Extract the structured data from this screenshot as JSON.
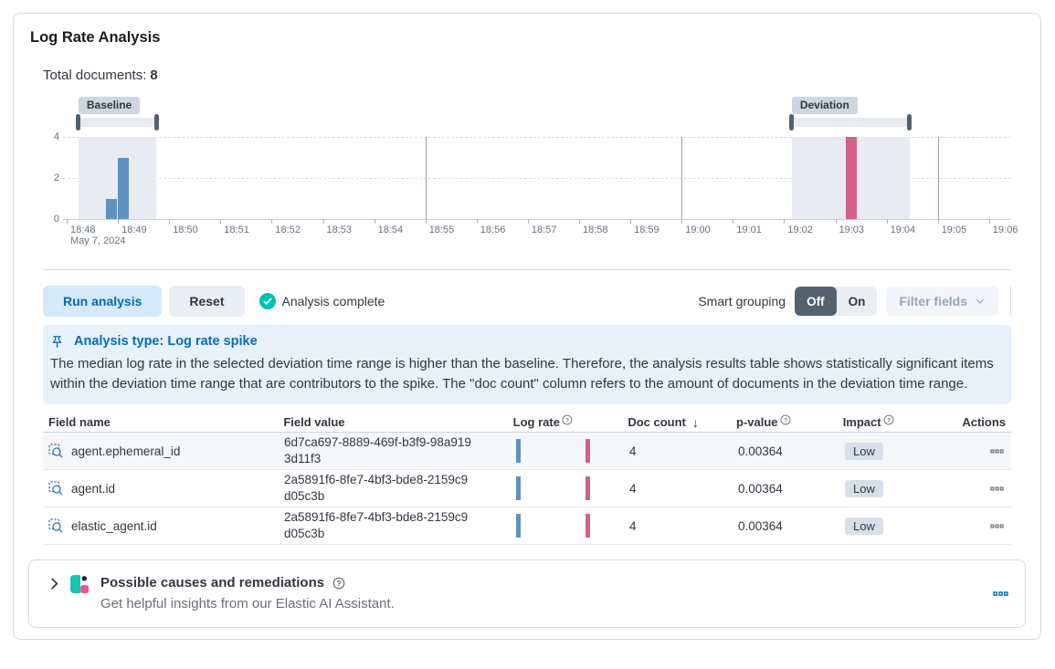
{
  "panel": {
    "title": "Log Rate Analysis"
  },
  "summary": {
    "label": "Total documents:",
    "value": "8"
  },
  "chart_data": {
    "type": "bar",
    "title": "document count histogram",
    "x_ticks": [
      "18:48",
      "18:49",
      "18:50",
      "18:51",
      "18:52",
      "18:53",
      "18:54",
      "18:55",
      "18:56",
      "18:57",
      "18:58",
      "18:59",
      "19:00",
      "19:01",
      "19:02",
      "19:03",
      "19:04",
      "19:05",
      "19:06"
    ],
    "x_date_label": "May 7, 2024",
    "y_ticks": [
      0,
      2,
      4
    ],
    "ylim": [
      0,
      4
    ],
    "grid": "dashed horizontal at 2 and 4, solid vertical every 5 minutes",
    "gridline_minutes": [
      7,
      12,
      17
    ],
    "bars": [
      {
        "time": "18:48:46",
        "minute_offset": 0.77,
        "value": 1,
        "series": "baseline",
        "color": "#6092C0"
      },
      {
        "time": "18:49:00",
        "minute_offset": 0.99,
        "value": 3,
        "series": "baseline",
        "color": "#6092C0"
      },
      {
        "time": "19:03:12",
        "minute_offset": 15.2,
        "value": 4,
        "series": "deviation",
        "color": "#D36086"
      }
    ],
    "brushes": {
      "baseline": {
        "label": "Baseline",
        "from_minute": 0.23,
        "to_minute": 1.75
      },
      "deviation": {
        "label": "Deviation",
        "from_minute": 14.15,
        "to_minute": 16.45
      }
    }
  },
  "toolbar": {
    "run_button": "Run analysis",
    "reset_button": "Reset",
    "status": "Analysis complete",
    "smart_grouping_label": "Smart grouping",
    "toggle_off": "Off",
    "toggle_on": "On",
    "filter_fields_button": "Filter fields"
  },
  "callout": {
    "title": "Analysis type: Log rate spike",
    "body": "The median log rate in the selected deviation time range is higher than the baseline. Therefore, the analysis results table shows statistically significant items within the deviation time range that are contributors to the spike. The \"doc count\" column refers to the amount of documents in the deviation time range."
  },
  "table": {
    "columns": [
      "Field name",
      "Field value",
      "Log rate",
      "Doc count",
      "p-value",
      "Impact",
      "Actions"
    ],
    "sorted_column": "Doc count",
    "sort_direction": "desc",
    "rows": [
      {
        "field_name": "agent.ephemeral_id",
        "field_value": "6d7ca697-8889-469f-b3f9-98a9193d11f3",
        "doc_count": "4",
        "p_value": "0.00364",
        "impact": "Low"
      },
      {
        "field_name": "agent.id",
        "field_value": "2a5891f6-8fe7-4bf3-bde8-2159c9d05c3b",
        "doc_count": "4",
        "p_value": "0.00364",
        "impact": "Low"
      },
      {
        "field_name": "elastic_agent.id",
        "field_value": "2a5891f6-8fe7-4bf3-bde8-2159c9d05c3b",
        "doc_count": "4",
        "p_value": "0.00364",
        "impact": "Low"
      }
    ]
  },
  "footer": {
    "title": "Possible causes and remediations",
    "subtitle": "Get helpful insights from our Elastic AI Assistant."
  },
  "colors": {
    "baseline_bar": "#6092C0",
    "deviation_bar": "#D36086",
    "accent_blue": "#006BB4",
    "success_teal": "#00BFB3",
    "logo_teal": "#16C5B2",
    "logo_pink": "#F04E98",
    "brush_handle": "#54616E"
  }
}
